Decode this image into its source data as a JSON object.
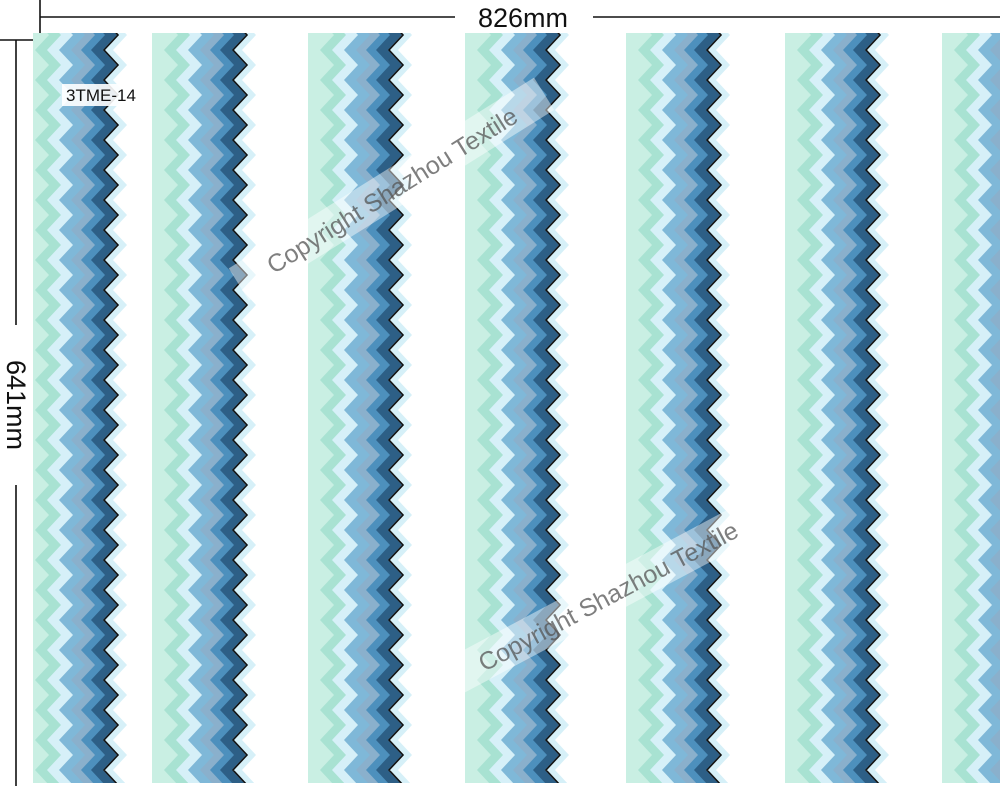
{
  "dimensions": {
    "width_label": "826mm",
    "height_label": "641mm"
  },
  "design_code": "3TME-14",
  "watermark": {
    "text": "Copyright Shazhou Textile"
  },
  "palette": {
    "background": "#ffffff",
    "mint": "#a8e2d2",
    "mint_light": "#c9efe3",
    "ice": "#d6f0f8",
    "sky": "#7fb8d8",
    "blue": "#4d90bd",
    "steel": "#8ab0cc",
    "navy": "#2d5f86",
    "outline": "#111111"
  }
}
